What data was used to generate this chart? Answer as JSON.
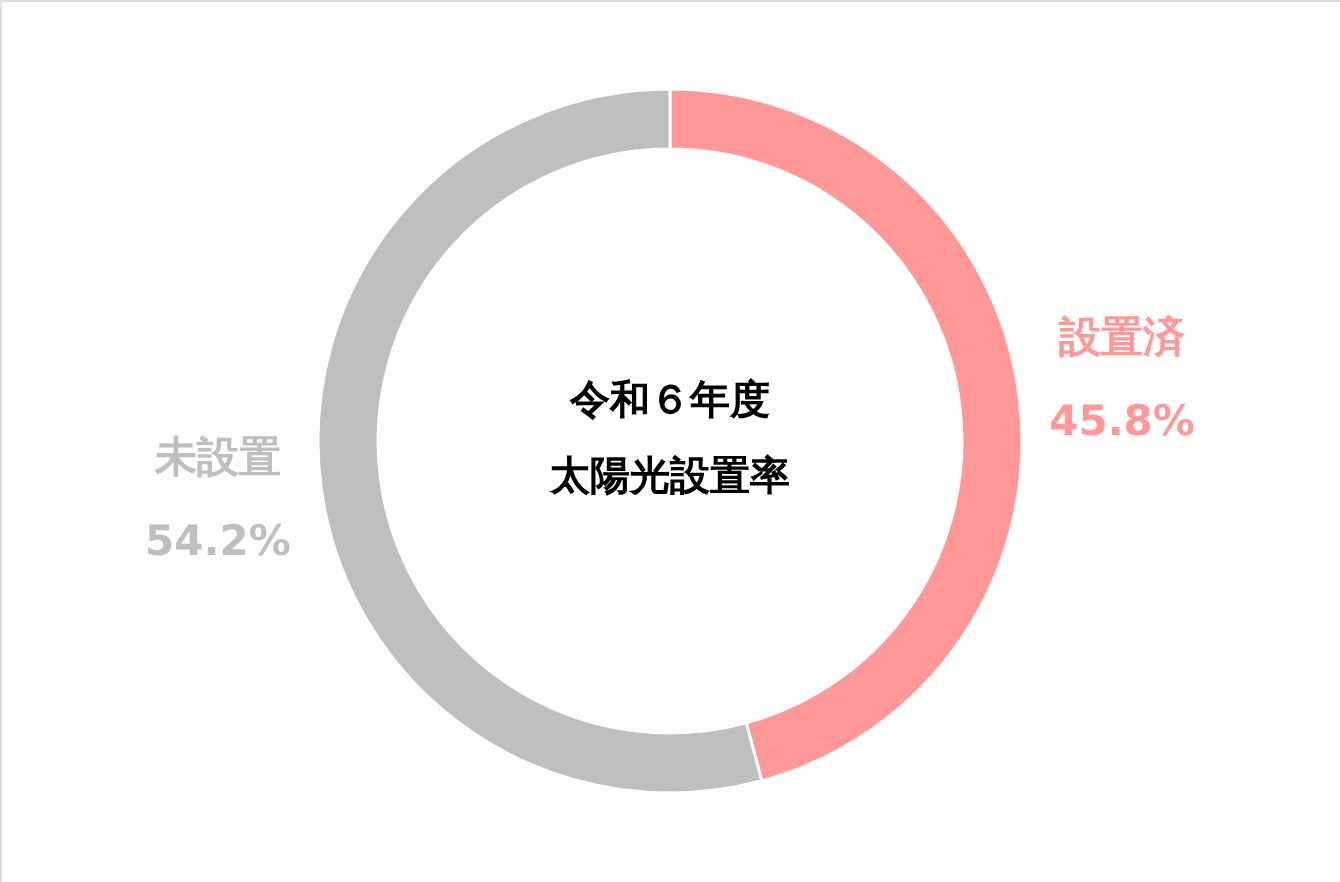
{
  "chart_data": {
    "type": "donut",
    "title": "令和６年度",
    "subtitle": "太陽光設置率",
    "categories": [
      "設置済",
      "未設置"
    ],
    "values": [
      45.8,
      54.2
    ],
    "colors": [
      "#ff9999",
      "#bfbfbf"
    ],
    "value_labels": [
      "45.8%",
      "54.2%"
    ]
  }
}
